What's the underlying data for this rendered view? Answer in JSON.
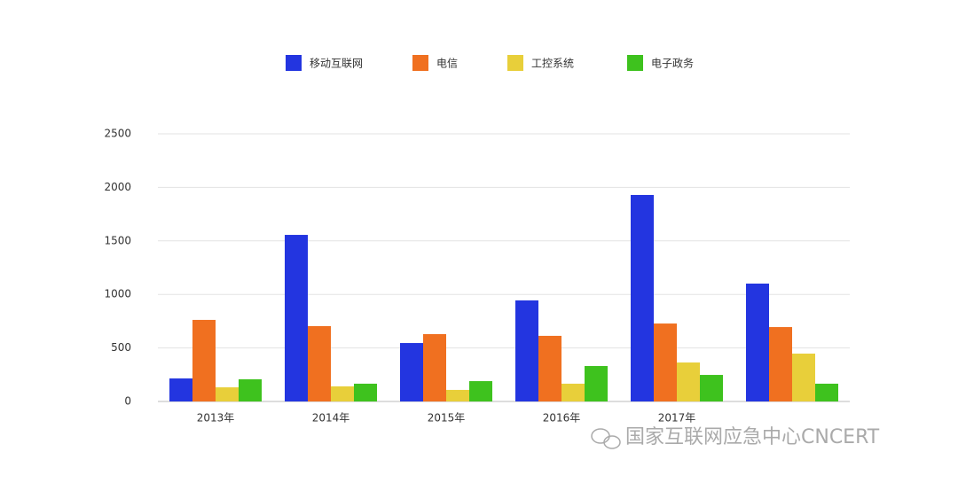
{
  "chart_data": {
    "type": "bar",
    "categories": [
      "2013年",
      "2014年",
      "2015年",
      "2016年",
      "2017年",
      null
    ],
    "series": [
      {
        "name": "移动互联网",
        "color": "#2335e0",
        "values": [
          215,
          1556,
          546,
          944,
          1929,
          1101
        ]
      },
      {
        "name": "电信",
        "color": "#f07020",
        "values": [
          762,
          704,
          629,
          613,
          728,
          695
        ]
      },
      {
        "name": "工控系统",
        "color": "#e8cf3a",
        "values": [
          132,
          141,
          108,
          166,
          364,
          447
        ]
      },
      {
        "name": "电子政务",
        "color": "#3ec21e",
        "values": [
          207,
          166,
          190,
          331,
          248,
          166
        ]
      }
    ],
    "ylim": [
      0,
      2500
    ],
    "yticks": [
      0,
      500,
      1000,
      1500,
      2000,
      2500
    ],
    "grid": true,
    "legend": "top"
  },
  "watermark": "国家互联网应急中心CNCERT"
}
